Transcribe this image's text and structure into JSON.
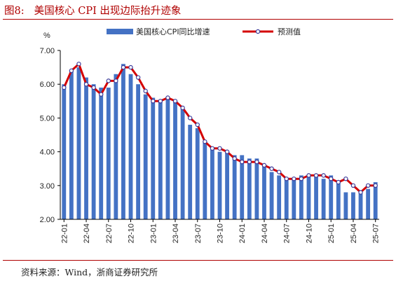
{
  "figure": {
    "number": "图8:",
    "title": "美国核心 CPI 出现边际抬升迹象",
    "source": "资料来源：Wind，浙商证券研究所"
  },
  "colors": {
    "bar": "#4472c4",
    "line": "#d40000",
    "marker_fill": "#ffffff",
    "marker_stroke": "#3b3b9a",
    "title": "#b00000"
  },
  "chart_data": {
    "type": "bar",
    "y_unit": "%",
    "ylim": [
      2.0,
      7.0
    ],
    "yticks": [
      "2.00",
      "3.00",
      "4.00",
      "5.00",
      "6.00",
      "7.00"
    ],
    "grid": false,
    "legend_position": "top",
    "x_tick_labels": [
      "22-01",
      "22-04",
      "22-07",
      "22-10",
      "23-01",
      "23-04",
      "23-07",
      "23-10",
      "24-01",
      "24-04",
      "24-07",
      "24-10",
      "25-01",
      "25-04",
      "25-07"
    ],
    "categories": [
      "22-01",
      "22-02",
      "22-03",
      "22-04",
      "22-05",
      "22-06",
      "22-07",
      "22-08",
      "22-09",
      "22-10",
      "22-11",
      "22-12",
      "23-01",
      "23-02",
      "23-03",
      "23-04",
      "23-05",
      "23-06",
      "23-07",
      "23-08",
      "23-09",
      "23-10",
      "23-11",
      "23-12",
      "24-01",
      "24-02",
      "24-03",
      "24-04",
      "24-05",
      "24-06",
      "24-07",
      "24-08",
      "24-09",
      "24-10",
      "24-11",
      "24-12",
      "25-01",
      "25-02",
      "25-03",
      "25-04",
      "25-05",
      "25-06",
      "25-07"
    ],
    "series": [
      {
        "name": "美国核心CPI同比增速",
        "type": "bar",
        "values": [
          6.0,
          6.4,
          6.5,
          6.2,
          6.0,
          5.9,
          5.9,
          6.3,
          6.6,
          6.3,
          6.0,
          5.7,
          5.6,
          5.5,
          5.6,
          5.5,
          5.3,
          4.8,
          4.7,
          4.3,
          4.1,
          4.0,
          4.0,
          3.9,
          3.9,
          3.8,
          3.8,
          3.6,
          3.4,
          3.3,
          3.2,
          3.2,
          3.3,
          3.3,
          3.3,
          3.2,
          3.3,
          3.1,
          2.8,
          2.8,
          2.8,
          2.9,
          3.1
        ]
      },
      {
        "name": "预测值",
        "type": "line",
        "values": [
          5.9,
          6.4,
          6.6,
          6.0,
          5.9,
          5.7,
          6.1,
          6.1,
          6.5,
          6.5,
          6.2,
          5.8,
          5.5,
          5.5,
          5.6,
          5.5,
          5.3,
          5.0,
          4.8,
          4.3,
          4.1,
          4.1,
          4.0,
          3.8,
          3.7,
          3.7,
          3.7,
          3.6,
          3.5,
          3.4,
          3.2,
          3.2,
          3.2,
          3.3,
          3.3,
          3.3,
          3.2,
          3.1,
          3.2,
          3.0,
          2.8,
          3.0,
          3.0
        ]
      }
    ]
  }
}
